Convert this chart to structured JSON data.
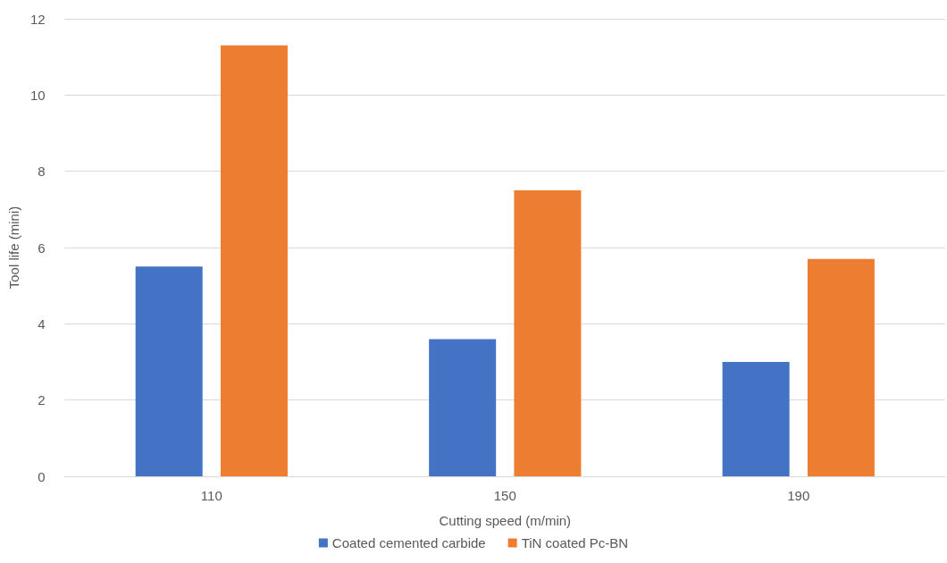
{
  "chart_data": {
    "type": "bar",
    "xlabel": "Cutting speed (m/min)",
    "ylabel": "Tool life (mini)",
    "categories": [
      "110",
      "150",
      "190"
    ],
    "series": [
      {
        "name": "Coated cemented carbide",
        "color": "#4472c4",
        "values": [
          5.5,
          3.6,
          3.0
        ]
      },
      {
        "name": "TiN coated Pc-BN",
        "color": "#ed7d31",
        "values": [
          11.3,
          7.5,
          5.7
        ]
      }
    ],
    "ylim": [
      0,
      12
    ],
    "yticks": [
      0,
      2,
      4,
      6,
      8,
      10,
      12
    ],
    "grid": "y",
    "legend": "bottom"
  }
}
